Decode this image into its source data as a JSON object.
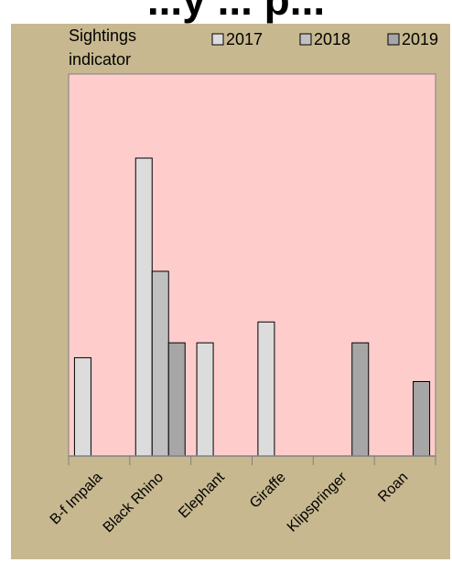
{
  "chart_data": {
    "type": "bar",
    "title": "...y ... p...",
    "ylabel": [
      "Sightings",
      "indicator"
    ],
    "xlabel": "",
    "categories": [
      "B-f Impala",
      "Black Rhino",
      "Elephant",
      "Giraffe",
      "Klipspringer",
      "Roan"
    ],
    "series": [
      {
        "name": "2017",
        "color": "#dcdcdc",
        "values": [
          0.33,
          1.0,
          0.38,
          0.45,
          0,
          0
        ]
      },
      {
        "name": "2018",
        "color": "#c0c0c0",
        "values": [
          0,
          0.62,
          0,
          0,
          0,
          0
        ]
      },
      {
        "name": "2019",
        "color": "#a6a6a6",
        "values": [
          0,
          0.38,
          0,
          0,
          0.38,
          0.25
        ]
      }
    ],
    "ylim": [
      0,
      1.0
    ],
    "grid": false,
    "legend_position": "top-right",
    "colors": {
      "frame_background": "#c7b88f",
      "plot_background": "#ffcccc",
      "bar_stroke": "#000000"
    }
  }
}
